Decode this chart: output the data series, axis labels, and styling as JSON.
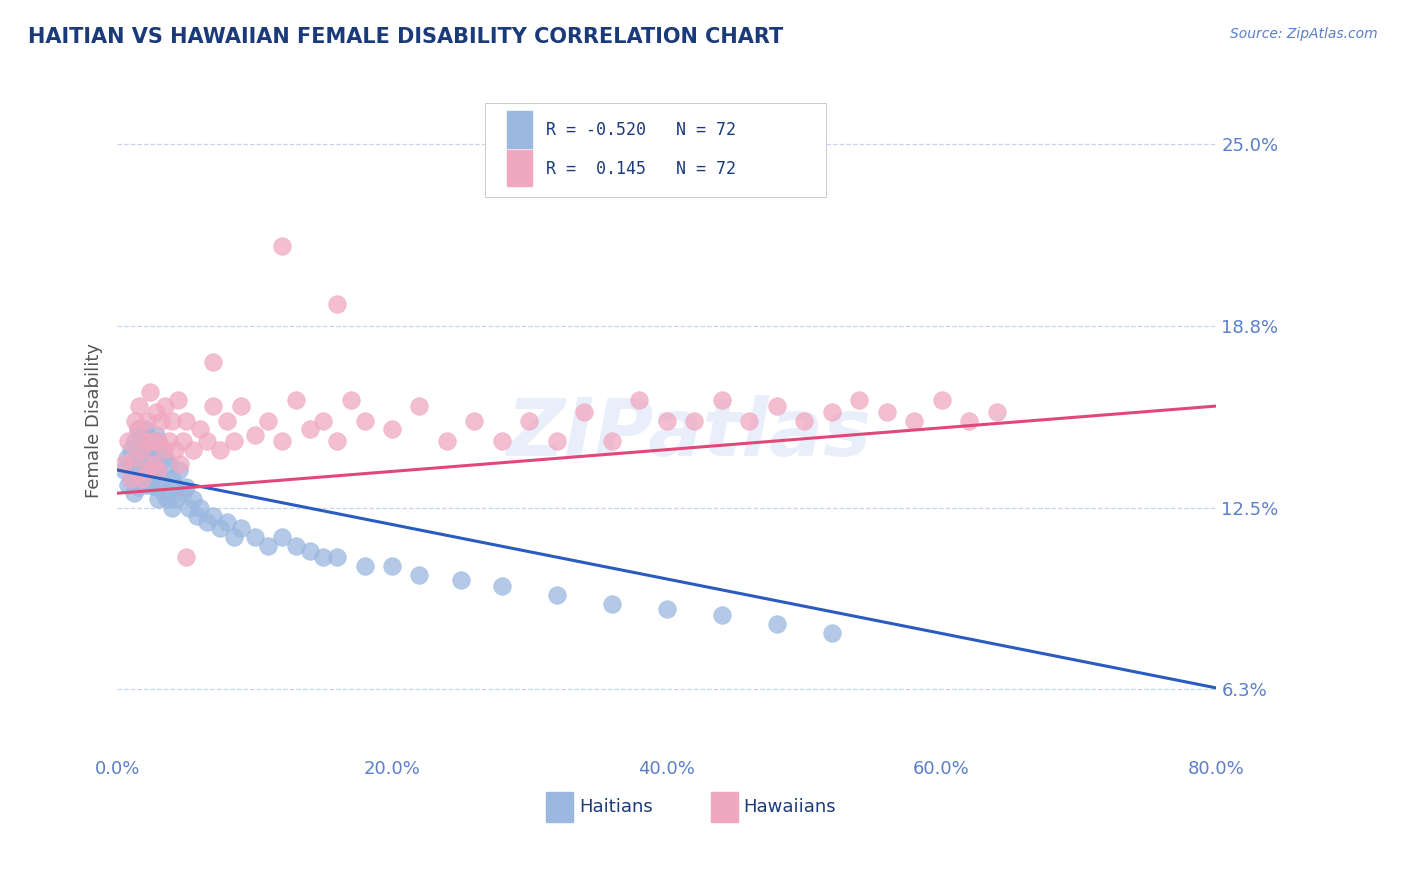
{
  "title": "HAITIAN VS HAWAIIAN FEMALE DISABILITY CORRELATION CHART",
  "source": "Source: ZipAtlas.com",
  "ylabel": "Female Disability",
  "legend_labels": [
    "Haitians",
    "Hawaiians"
  ],
  "xmin": 0.0,
  "xmax": 0.8,
  "ymin": 0.04,
  "ymax": 0.27,
  "ytick_vals": [
    0.0625,
    0.125,
    0.1875,
    0.25
  ],
  "ytick_labels": [
    "6.3%",
    "12.5%",
    "18.8%",
    "25.0%"
  ],
  "xtick_labels": [
    "0.0%",
    "20.0%",
    "40.0%",
    "60.0%",
    "80.0%"
  ],
  "xtick_vals": [
    0.0,
    0.2,
    0.4,
    0.6,
    0.8
  ],
  "title_color": "#1a3a7a",
  "axis_color": "#5b7fc9",
  "tick_color": "#5b7fc9",
  "grid_color": "#c8d4ee",
  "blue_scatter_color": "#9ab8e0",
  "pink_scatter_color": "#f0a8c0",
  "blue_line_color": "#2a5cc0",
  "pink_line_color": "#e04878",
  "watermark": "ZIPatlas",
  "blue_points_x": [
    0.005,
    0.007,
    0.008,
    0.01,
    0.01,
    0.012,
    0.012,
    0.013,
    0.015,
    0.015,
    0.015,
    0.017,
    0.017,
    0.018,
    0.018,
    0.02,
    0.02,
    0.02,
    0.022,
    0.022,
    0.023,
    0.024,
    0.025,
    0.025,
    0.026,
    0.027,
    0.028,
    0.028,
    0.03,
    0.03,
    0.03,
    0.032,
    0.033,
    0.034,
    0.035,
    0.036,
    0.038,
    0.04,
    0.04,
    0.042,
    0.043,
    0.045,
    0.048,
    0.05,
    0.052,
    0.055,
    0.058,
    0.06,
    0.065,
    0.07,
    0.075,
    0.08,
    0.085,
    0.09,
    0.1,
    0.11,
    0.12,
    0.13,
    0.14,
    0.15,
    0.16,
    0.18,
    0.2,
    0.22,
    0.25,
    0.28,
    0.32,
    0.36,
    0.4,
    0.44,
    0.48,
    0.52
  ],
  "blue_points_y": [
    0.138,
    0.142,
    0.133,
    0.145,
    0.135,
    0.14,
    0.13,
    0.148,
    0.152,
    0.142,
    0.132,
    0.148,
    0.138,
    0.145,
    0.135,
    0.152,
    0.143,
    0.133,
    0.15,
    0.138,
    0.146,
    0.133,
    0.148,
    0.136,
    0.143,
    0.138,
    0.15,
    0.132,
    0.148,
    0.138,
    0.128,
    0.145,
    0.135,
    0.13,
    0.142,
    0.128,
    0.14,
    0.135,
    0.125,
    0.132,
    0.128,
    0.138,
    0.13,
    0.132,
    0.125,
    0.128,
    0.122,
    0.125,
    0.12,
    0.122,
    0.118,
    0.12,
    0.115,
    0.118,
    0.115,
    0.112,
    0.115,
    0.112,
    0.11,
    0.108,
    0.108,
    0.105,
    0.105,
    0.102,
    0.1,
    0.098,
    0.095,
    0.092,
    0.09,
    0.088,
    0.085,
    0.082
  ],
  "pink_points_x": [
    0.005,
    0.008,
    0.01,
    0.012,
    0.013,
    0.015,
    0.016,
    0.018,
    0.018,
    0.02,
    0.022,
    0.022,
    0.024,
    0.025,
    0.026,
    0.028,
    0.03,
    0.03,
    0.032,
    0.034,
    0.035,
    0.038,
    0.04,
    0.042,
    0.044,
    0.046,
    0.048,
    0.05,
    0.055,
    0.06,
    0.065,
    0.07,
    0.075,
    0.08,
    0.085,
    0.09,
    0.1,
    0.11,
    0.12,
    0.13,
    0.14,
    0.15,
    0.16,
    0.17,
    0.18,
    0.2,
    0.22,
    0.24,
    0.26,
    0.28,
    0.3,
    0.32,
    0.34,
    0.36,
    0.38,
    0.4,
    0.42,
    0.44,
    0.46,
    0.48,
    0.5,
    0.52,
    0.54,
    0.56,
    0.58,
    0.6,
    0.62,
    0.64,
    0.05,
    0.07,
    0.12,
    0.16
  ],
  "pink_points_y": [
    0.14,
    0.148,
    0.135,
    0.142,
    0.155,
    0.152,
    0.16,
    0.145,
    0.135,
    0.148,
    0.155,
    0.138,
    0.165,
    0.148,
    0.14,
    0.158,
    0.148,
    0.138,
    0.155,
    0.145,
    0.16,
    0.148,
    0.155,
    0.145,
    0.162,
    0.14,
    0.148,
    0.155,
    0.145,
    0.152,
    0.148,
    0.16,
    0.145,
    0.155,
    0.148,
    0.16,
    0.15,
    0.155,
    0.148,
    0.162,
    0.152,
    0.155,
    0.148,
    0.162,
    0.155,
    0.152,
    0.16,
    0.148,
    0.155,
    0.148,
    0.155,
    0.148,
    0.158,
    0.148,
    0.162,
    0.155,
    0.155,
    0.162,
    0.155,
    0.16,
    0.155,
    0.158,
    0.162,
    0.158,
    0.155,
    0.162,
    0.155,
    0.158,
    0.108,
    0.175,
    0.215,
    0.195
  ],
  "blue_trend_x0": 0.0,
  "blue_trend_y0": 0.138,
  "blue_trend_x1": 0.8,
  "blue_trend_y1": 0.063,
  "pink_trend_x0": 0.0,
  "pink_trend_y0": 0.13,
  "pink_trend_x1": 0.8,
  "pink_trend_y1": 0.16
}
